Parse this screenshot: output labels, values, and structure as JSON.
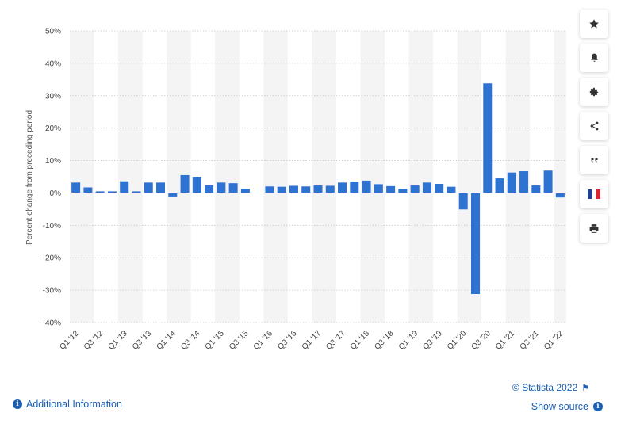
{
  "chart_data": {
    "type": "bar",
    "title": "",
    "xlabel": "",
    "ylabel": "Percent change from preceding period",
    "ylim": [
      -40,
      50
    ],
    "y_ticks": [
      50,
      40,
      30,
      20,
      10,
      0,
      -10,
      -20,
      -30,
      -40
    ],
    "y_tick_labels": [
      "50%",
      "40%",
      "30%",
      "20%",
      "10%",
      "0%",
      "-10%",
      "-20%",
      "-30%",
      "-40%"
    ],
    "grid": true,
    "legend": "none",
    "bar_color": "#2e72d2",
    "categories": [
      "Q1 '12",
      "Q2 '12",
      "Q3 '12",
      "Q4 '12",
      "Q1 '13",
      "Q2 '13",
      "Q3 '13",
      "Q4 '13",
      "Q1 '14",
      "Q2 '14",
      "Q3 '14",
      "Q4 '14",
      "Q1 '15",
      "Q2 '15",
      "Q3 '15",
      "Q4 '15",
      "Q1 '16",
      "Q2 '16",
      "Q3 '16",
      "Q4 '16",
      "Q1 '17",
      "Q2 '17",
      "Q3 '17",
      "Q4 '17",
      "Q1 '18",
      "Q2 '18",
      "Q3 '18",
      "Q4 '18",
      "Q1 '19",
      "Q2 '19",
      "Q3 '19",
      "Q4 '19",
      "Q1 '20",
      "Q2 '20",
      "Q3 '20",
      "Q4 '20",
      "Q1 '21",
      "Q2 '21",
      "Q3 '21",
      "Q4 '21",
      "Q1 '22"
    ],
    "values": [
      3.2,
      1.7,
      0.5,
      0.5,
      3.6,
      0.5,
      3.2,
      3.2,
      -1.1,
      5.5,
      5.0,
      2.3,
      3.2,
      3.0,
      1.3,
      0.1,
      2.0,
      1.9,
      2.2,
      2.0,
      2.3,
      2.2,
      3.2,
      3.5,
      3.8,
      2.7,
      2.1,
      1.3,
      2.3,
      3.2,
      2.8,
      1.9,
      -5.1,
      -31.2,
      33.8,
      4.5,
      6.3,
      6.7,
      2.3,
      6.9,
      -1.4
    ],
    "x_tick_labels": [
      "Q1 '12",
      "Q3 '12",
      "Q1 '13",
      "Q3 '13",
      "Q1 '14",
      "Q3 '14",
      "Q1 '15",
      "Q3 '15",
      "Q1 '16",
      "Q3 '16",
      "Q1 '17",
      "Q3 '17",
      "Q1 '18",
      "Q3 '18",
      "Q1 '19",
      "Q3 '19",
      "Q1 '20",
      "Q3 '20",
      "Q1 '21",
      "Q3 '21",
      "Q1 '22"
    ]
  },
  "toolbar": {
    "buttons": [
      {
        "name": "favorite",
        "icon": "star-icon"
      },
      {
        "name": "notification",
        "icon": "bell-icon"
      },
      {
        "name": "settings",
        "icon": "gear-icon"
      },
      {
        "name": "share",
        "icon": "share-icon"
      },
      {
        "name": "cite",
        "icon": "quote-icon"
      },
      {
        "name": "language",
        "icon": "french-flag-icon"
      },
      {
        "name": "print",
        "icon": "printer-icon"
      }
    ]
  },
  "footer": {
    "additional_info": "Additional Information",
    "credit": "© Statista 2022",
    "show_source": "Show source"
  }
}
